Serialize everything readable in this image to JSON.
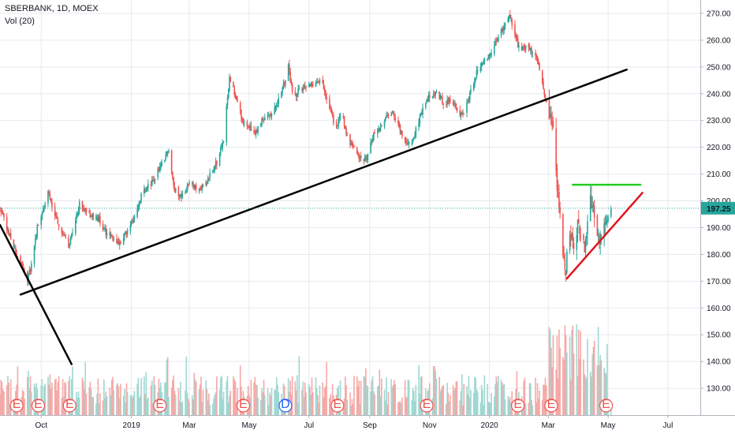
{
  "header": {
    "title": "SBERBANK, 1D, MOEX",
    "indicator": "Vol (20)"
  },
  "current_price": {
    "label": "197.25",
    "value": 197.25
  },
  "colors": {
    "up": "#26a69a",
    "down": "#ef5350",
    "vol_up": "#9fd8d2",
    "vol_down": "#f5a9a7",
    "grid": "#e6e9ee",
    "trendline": "#000000",
    "resistance": "#22cc22",
    "support": "#e0141e",
    "price_tag": "#26a69a"
  },
  "events": [
    {
      "label": "E",
      "date": "2018-09-06",
      "color": "#ef5350"
    },
    {
      "label": "E",
      "date": "2018-09-28",
      "color": "#ef5350"
    },
    {
      "label": "E",
      "date": "2018-10-30",
      "color": "#ef5350"
    },
    {
      "label": "E",
      "date": "2019-01-30",
      "color": "#ef5350"
    },
    {
      "label": "E",
      "date": "2019-04-25",
      "color": "#ef5350"
    },
    {
      "label": "D",
      "date": "2019-06-07",
      "color": "#2962ff"
    },
    {
      "label": "E",
      "date": "2019-07-30",
      "color": "#ef5350"
    },
    {
      "label": "E",
      "date": "2019-10-29",
      "color": "#ef5350"
    },
    {
      "label": "E",
      "date": "2020-01-30",
      "color": "#ef5350"
    },
    {
      "label": "E",
      "date": "2020-03-04",
      "color": "#ef5350"
    },
    {
      "label": "E",
      "date": "2020-04-29",
      "color": "#ef5350"
    }
  ],
  "chart_data": {
    "type": "candlestick",
    "x_ticks": [
      {
        "label": "Oct",
        "date": "2018-10-01"
      },
      {
        "label": "2019",
        "date": "2019-01-01"
      },
      {
        "label": "Mar",
        "date": "2019-03-01"
      },
      {
        "label": "May",
        "date": "2019-05-01"
      },
      {
        "label": "Jul",
        "date": "2019-07-01"
      },
      {
        "label": "Sep",
        "date": "2019-09-01"
      },
      {
        "label": "Nov",
        "date": "2019-11-01"
      },
      {
        "label": "2020",
        "date": "2020-01-01"
      },
      {
        "label": "Mar",
        "date": "2020-03-01"
      },
      {
        "label": "May",
        "date": "2020-05-01"
      },
      {
        "label": "Jul",
        "date": "2020-07-01"
      }
    ],
    "y_ticks": [
      {
        "label": "270.00",
        "value": 270
      },
      {
        "label": "260.00",
        "value": 260
      },
      {
        "label": "250.00",
        "value": 250
      },
      {
        "label": "240.00",
        "value": 240
      },
      {
        "label": "230.00",
        "value": 230
      },
      {
        "label": "220.00",
        "value": 220
      },
      {
        "label": "210.00",
        "value": 210
      },
      {
        "label": "200.00",
        "value": 200
      },
      {
        "label": "190.00",
        "value": 190
      },
      {
        "label": "180.00",
        "value": 180
      },
      {
        "label": "170.00",
        "value": 170
      },
      {
        "label": "160.00",
        "value": 160
      },
      {
        "label": "150.00",
        "value": 150
      },
      {
        "label": "140.00",
        "value": 140
      },
      {
        "label": "130.00",
        "value": 130
      }
    ],
    "price_path": [
      [
        "2018-08-20",
        197
      ],
      [
        "2018-08-28",
        189
      ],
      [
        "2018-09-05",
        181
      ],
      [
        "2018-09-12",
        175
      ],
      [
        "2018-09-17",
        170
      ],
      [
        "2018-09-22",
        178
      ],
      [
        "2018-09-27",
        190
      ],
      [
        "2018-10-03",
        197
      ],
      [
        "2018-10-08",
        203
      ],
      [
        "2018-10-15",
        195
      ],
      [
        "2018-10-22",
        188
      ],
      [
        "2018-10-29",
        183
      ],
      [
        "2018-11-03",
        190
      ],
      [
        "2018-11-09",
        199
      ],
      [
        "2018-11-15",
        196
      ],
      [
        "2018-11-22",
        194
      ],
      [
        "2018-11-29",
        193
      ],
      [
        "2018-12-06",
        188
      ],
      [
        "2018-12-13",
        186
      ],
      [
        "2018-12-20",
        184
      ],
      [
        "2018-12-27",
        188
      ],
      [
        "2019-01-03",
        193
      ],
      [
        "2019-01-12",
        203
      ],
      [
        "2019-01-22",
        207
      ],
      [
        "2019-01-31",
        213
      ],
      [
        "2019-02-08",
        219
      ],
      [
        "2019-02-14",
        204
      ],
      [
        "2019-02-22",
        202
      ],
      [
        "2019-03-02",
        207
      ],
      [
        "2019-03-10",
        204
      ],
      [
        "2019-03-17",
        206
      ],
      [
        "2019-03-24",
        211
      ],
      [
        "2019-03-30",
        215
      ],
      [
        "2019-04-05",
        223
      ],
      [
        "2019-04-11",
        246
      ],
      [
        "2019-04-18",
        238
      ],
      [
        "2019-04-24",
        230
      ],
      [
        "2019-04-30",
        228
      ],
      [
        "2019-05-07",
        225
      ],
      [
        "2019-05-14",
        230
      ],
      [
        "2019-05-22",
        232
      ],
      [
        "2019-05-29",
        236
      ],
      [
        "2019-06-05",
        243
      ],
      [
        "2019-06-10",
        250
      ],
      [
        "2019-06-15",
        238
      ],
      [
        "2019-06-22",
        242
      ],
      [
        "2019-06-30",
        243
      ],
      [
        "2019-07-07",
        244
      ],
      [
        "2019-07-14",
        245
      ],
      [
        "2019-07-21",
        235
      ],
      [
        "2019-07-28",
        228
      ],
      [
        "2019-08-04",
        232
      ],
      [
        "2019-08-09",
        224
      ],
      [
        "2019-08-15",
        220
      ],
      [
        "2019-08-22",
        216
      ],
      [
        "2019-08-29",
        215
      ],
      [
        "2019-09-04",
        224
      ],
      [
        "2019-09-10",
        226
      ],
      [
        "2019-09-17",
        231
      ],
      [
        "2019-09-24",
        233
      ],
      [
        "2019-10-01",
        227
      ],
      [
        "2019-10-07",
        223
      ],
      [
        "2019-10-13",
        220
      ],
      [
        "2019-10-19",
        228
      ],
      [
        "2019-10-26",
        235
      ],
      [
        "2019-11-02",
        240
      ],
      [
        "2019-11-09",
        240
      ],
      [
        "2019-11-16",
        236
      ],
      [
        "2019-11-23",
        238
      ],
      [
        "2019-11-30",
        233
      ],
      [
        "2019-12-06",
        232
      ],
      [
        "2019-12-13",
        241
      ],
      [
        "2019-12-20",
        249
      ],
      [
        "2019-12-27",
        252
      ],
      [
        "2020-01-03",
        256
      ],
      [
        "2020-01-10",
        261
      ],
      [
        "2020-01-17",
        266
      ],
      [
        "2020-01-21",
        270
      ],
      [
        "2020-01-26",
        263
      ],
      [
        "2020-02-01",
        256
      ],
      [
        "2020-02-08",
        258
      ],
      [
        "2020-02-15",
        255
      ],
      [
        "2020-02-20",
        252
      ],
      [
        "2020-02-26",
        240
      ],
      [
        "2020-03-02",
        232
      ],
      [
        "2020-03-05",
        230
      ],
      [
        "2020-03-08",
        219
      ],
      [
        "2020-03-10",
        205
      ],
      [
        "2020-03-13",
        195
      ],
      [
        "2020-03-16",
        180
      ],
      [
        "2020-03-19",
        173
      ],
      [
        "2020-03-22",
        190
      ],
      [
        "2020-03-25",
        186
      ],
      [
        "2020-03-28",
        178
      ],
      [
        "2020-03-31",
        191
      ],
      [
        "2020-04-03",
        186
      ],
      [
        "2020-04-07",
        182
      ],
      [
        "2020-04-10",
        192
      ],
      [
        "2020-04-13",
        201
      ],
      [
        "2020-04-16",
        198
      ],
      [
        "2020-04-19",
        187
      ],
      [
        "2020-04-22",
        185
      ],
      [
        "2020-04-25",
        188
      ],
      [
        "2020-04-29",
        193
      ],
      [
        "2020-05-04",
        197.25
      ]
    ],
    "trendlines": [
      {
        "name": "long-term-support",
        "color": "#000000",
        "from": [
          "2018-09-10",
          165
        ],
        "to": [
          "2020-05-20",
          249
        ]
      },
      {
        "name": "descending-line",
        "color": "#000000",
        "from": [
          "2018-08-20",
          191
        ],
        "to": [
          "2018-11-01",
          139
        ]
      },
      {
        "name": "resistance",
        "color": "#22cc22",
        "from": [
          "2020-03-26",
          206
        ],
        "to": [
          "2020-06-03",
          206
        ]
      },
      {
        "name": "rising-support",
        "color": "#e0141e",
        "from": [
          "2020-03-20",
          171
        ],
        "to": [
          "2020-06-05",
          203
        ]
      }
    ],
    "volume_scale": "relative, no axis",
    "volume_start": "2018-08-20",
    "volume_end": "2020-05-04",
    "x_range": [
      "2018-08-20",
      "2020-08-03"
    ],
    "y_range": [
      120,
      275
    ],
    "grid": true
  }
}
